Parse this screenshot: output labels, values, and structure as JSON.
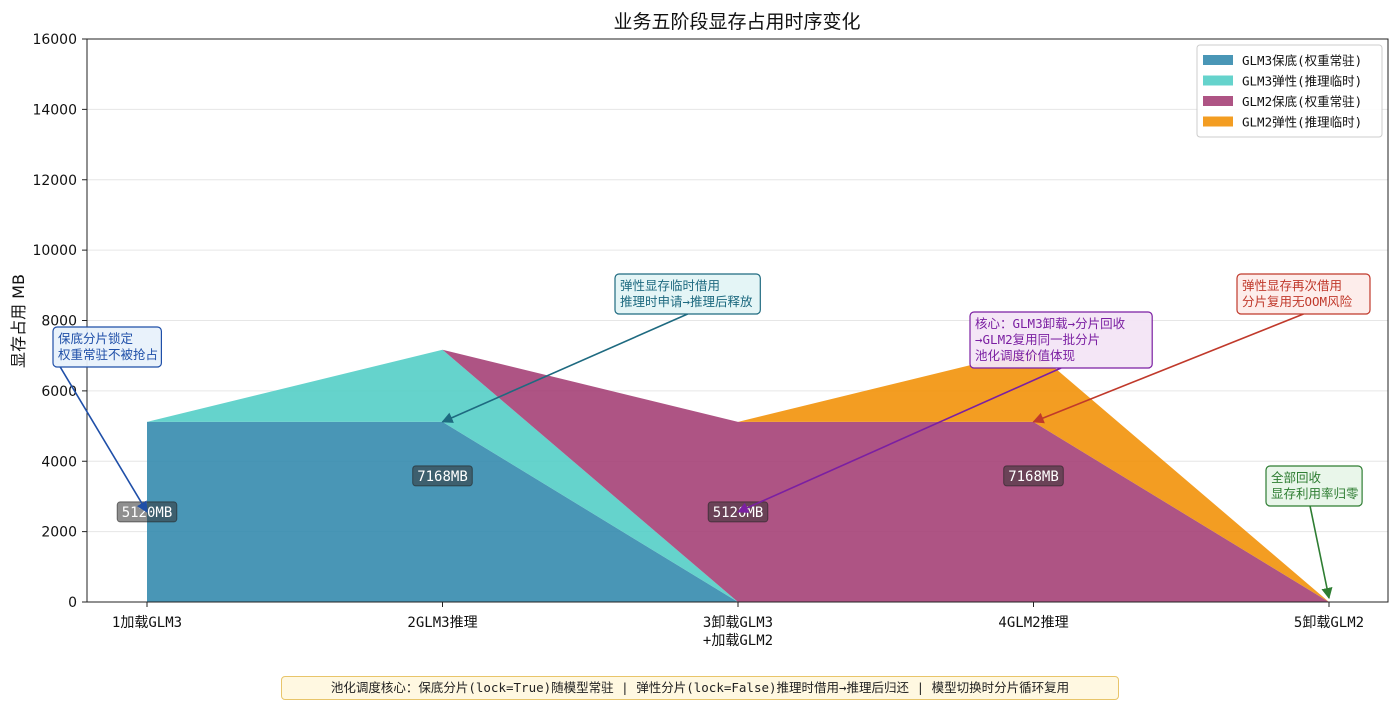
{
  "chart_data": {
    "type": "area",
    "title": "业务五阶段显存占用时序变化",
    "ylabel": "显存占用 MB",
    "xlabel": "",
    "ylim": [
      0,
      16000
    ],
    "yticks": [
      0,
      2000,
      4000,
      6000,
      8000,
      10000,
      12000,
      14000,
      16000
    ],
    "grid": true,
    "legend_position": "top-right",
    "categories": [
      "1加载GLM3",
      "2GLM3推理",
      "3卸载GLM3\n+加载GLM2",
      "4GLM2推理",
      "5卸载GLM2"
    ],
    "stacked": true,
    "series": [
      {
        "name": "GLM3保底(权重常驻)",
        "values": [
          5120,
          5120,
          0,
          0,
          0
        ],
        "color": "#2e86ab"
      },
      {
        "name": "GLM3弹性(推理临时)",
        "values": [
          0,
          2048,
          0,
          0,
          0
        ],
        "color": "#4ecdc4"
      },
      {
        "name": "GLM2保底(权重常驻)",
        "values": [
          0,
          0,
          5120,
          5120,
          0
        ],
        "color": "#a23b72"
      },
      {
        "name": "GLM2弹性(推理临时)",
        "values": [
          0,
          0,
          0,
          2048,
          0
        ],
        "color": "#f18f01"
      }
    ],
    "data_labels": [
      {
        "text": "5120MB",
        "x": 0,
        "y": 2560
      },
      {
        "text": "7168MB",
        "x": 1,
        "y": 3584
      },
      {
        "text": "5120MB",
        "x": 2,
        "y": 2560
      },
      {
        "text": "7168MB",
        "x": 3,
        "y": 3584
      }
    ],
    "annotations": [
      {
        "lines": [
          "保底分片锁定",
          "权重常驻不被抢占"
        ],
        "target_x": 0,
        "target_y": 2560,
        "color": "#1f4fa8",
        "bg": "#e8f1fb"
      },
      {
        "lines": [
          "弹性显存临时借用",
          "推理时申请→推理后释放"
        ],
        "target_x": 1,
        "target_y": 5120,
        "color": "#1e6a80",
        "bg": "#e3f4f6"
      },
      {
        "lines": [
          "核心：GLM3卸载→分片回收",
          "→GLM2复用同一批分片",
          "池化调度价值体现"
        ],
        "target_x": 2,
        "target_y": 2560,
        "color": "#7b1fa2",
        "bg": "#f3e5f5"
      },
      {
        "lines": [
          "弹性显存再次借用",
          "分片复用无OOM风险"
        ],
        "target_x": 3,
        "target_y": 5120,
        "color": "#c0392b",
        "bg": "#fdecea"
      },
      {
        "lines": [
          "全部回收",
          "显存利用率归零"
        ],
        "target_x": 4,
        "target_y": 0,
        "color": "#2e7d32",
        "bg": "#e8f5e9"
      }
    ]
  },
  "footer_note": "池化调度核心：保底分片(lock=True)随模型常驻 | 弹性分片(lock=False)推理时借用→推理后归还 | 模型切换时分片循环复用"
}
